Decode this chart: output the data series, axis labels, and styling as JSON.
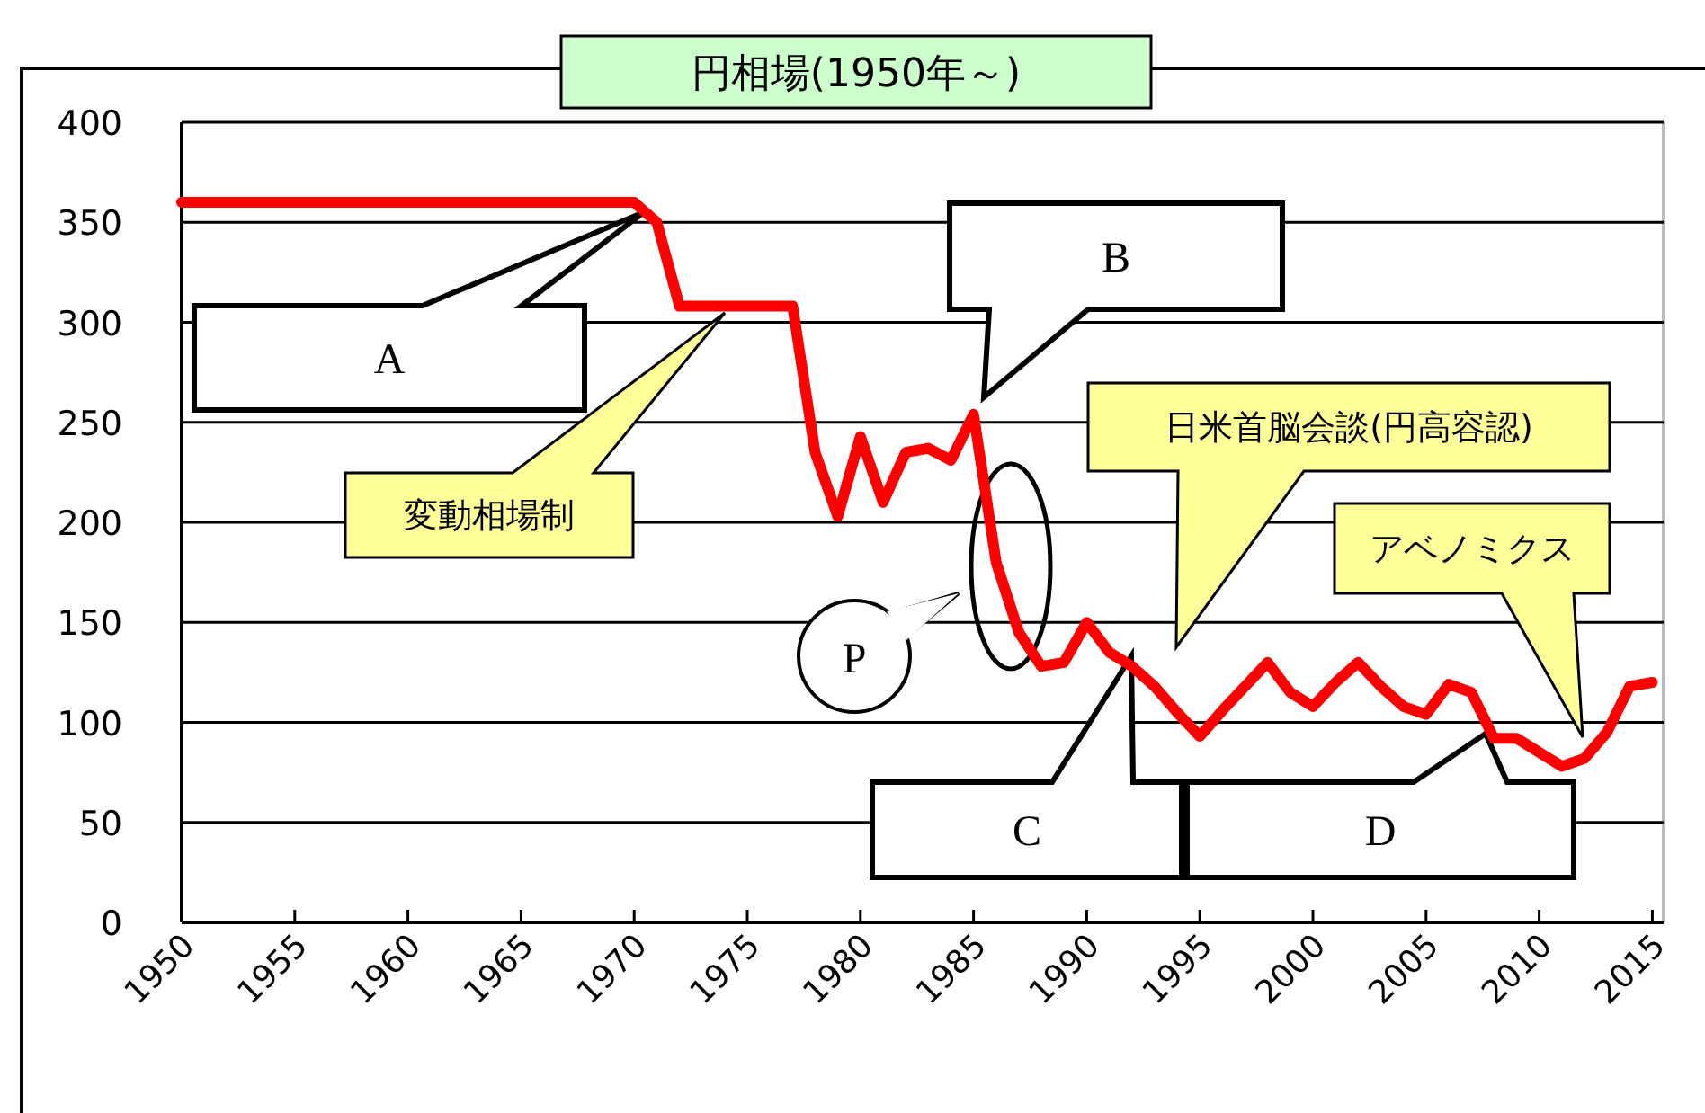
{
  "chart_data": {
    "type": "line",
    "title": "円相場(1950年～)",
    "x": [
      1950,
      1955,
      1960,
      1965,
      1970,
      1971,
      1972,
      1975,
      1977,
      1978,
      1979,
      1980,
      1981,
      1982,
      1983,
      1984,
      1985,
      1986,
      1987,
      1988,
      1989,
      1990,
      1991,
      1992,
      1993,
      1994,
      1995,
      1996,
      1997,
      1998,
      1999,
      2000,
      2001,
      2002,
      2003,
      2004,
      2005,
      2006,
      2007,
      2008,
      2009,
      2010,
      2011,
      2012,
      2013,
      2014,
      2015
    ],
    "series": [
      {
        "color": "#ff0000",
        "values": [
          360,
          360,
          360,
          360,
          360,
          350,
          308,
          308,
          308,
          235,
          203,
          243,
          210,
          235,
          237,
          231,
          254,
          180,
          145,
          128,
          130,
          150,
          135,
          128,
          118,
          105,
          93,
          106,
          118,
          130,
          115,
          108,
          120,
          130,
          118,
          108,
          104,
          119,
          115,
          92,
          92,
          85,
          78,
          82,
          95,
          118,
          120
        ]
      }
    ],
    "xlim": [
      1950,
      2015.5
    ],
    "ylim": [
      0,
      400
    ],
    "xticks": [
      1950,
      1955,
      1960,
      1965,
      1970,
      1975,
      1980,
      1985,
      1990,
      1995,
      2000,
      2005,
      2010,
      2015
    ],
    "yticks": [
      0,
      50,
      100,
      150,
      200,
      250,
      300,
      350,
      400
    ],
    "grid": "y",
    "annotations": [
      "A",
      "変動相場制",
      "B",
      "P",
      "日米首脳会談(円高容認)",
      "C",
      "アベノミクス",
      "D"
    ]
  }
}
